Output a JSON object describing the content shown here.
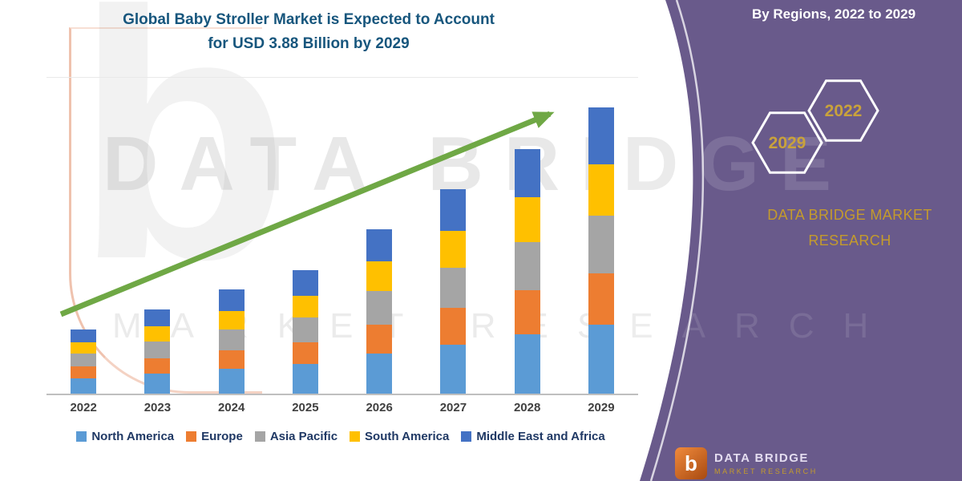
{
  "title": {
    "line1": "Global Baby Stroller Market is Expected to Account",
    "line2": "for USD 3.88 Billion by 2029"
  },
  "watermark": {
    "line1": "DATA BRIDGE",
    "line2": "MARKET RESEARCH",
    "logo_letter": "b"
  },
  "side_panel": {
    "heading": "By Regions, 2022 to 2029",
    "hexagons": [
      {
        "label": "2029"
      },
      {
        "label": "2022"
      }
    ],
    "brand_line1": "DATA BRIDGE MARKET",
    "brand_line2": "RESEARCH",
    "footer_logo_letter": "b",
    "footer_name": "DATA BRIDGE",
    "footer_subtitle": "MARKET RESEARCH",
    "colors": {
      "panel": "#695A8B",
      "gold": "#C49B2C",
      "arrow_green": "#6FA845",
      "title_blue": "#17567D"
    }
  },
  "chart_data": {
    "type": "bar",
    "stacked": true,
    "title": "Global Baby Stroller Market is Expected to Account for USD 3.88 Billion by 2029",
    "unit": "USD Billion (estimated from bar heights)",
    "categories": [
      "2022",
      "2023",
      "2024",
      "2025",
      "2026",
      "2027",
      "2028",
      "2029"
    ],
    "series": [
      {
        "name": "North America",
        "color": "#5B9BD5",
        "values": [
          0.21,
          0.27,
          0.34,
          0.4,
          0.54,
          0.66,
          0.8,
          0.93
        ]
      },
      {
        "name": "Europe",
        "color": "#ED7D31",
        "values": [
          0.16,
          0.21,
          0.25,
          0.3,
          0.4,
          0.5,
          0.6,
          0.7
        ]
      },
      {
        "name": "Asia Pacific",
        "color": "#A5A5A5",
        "values": [
          0.17,
          0.23,
          0.28,
          0.33,
          0.45,
          0.55,
          0.66,
          0.78
        ]
      },
      {
        "name": "South America",
        "color": "#FFC000",
        "values": [
          0.16,
          0.2,
          0.25,
          0.3,
          0.4,
          0.5,
          0.6,
          0.7
        ]
      },
      {
        "name": "Middle East and Africa",
        "color": "#4472C4",
        "values": [
          0.17,
          0.23,
          0.29,
          0.34,
          0.44,
          0.56,
          0.66,
          0.77
        ]
      }
    ],
    "totals": [
      0.87,
      1.14,
      1.41,
      1.67,
      2.23,
      2.77,
      3.32,
      3.88
    ],
    "ylim": [
      0,
      4
    ],
    "axis_labels_visible": false,
    "grid": false,
    "trend_arrow": true,
    "legend_position": "bottom"
  }
}
